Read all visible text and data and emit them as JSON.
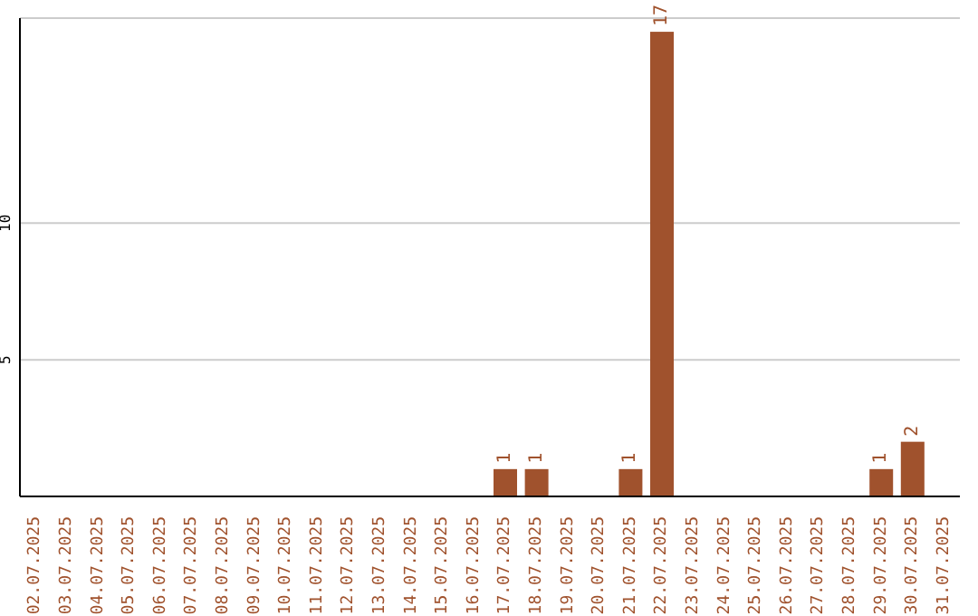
{
  "chart_data": {
    "type": "bar",
    "categories": [
      "02.07.2025",
      "03.07.2025",
      "04.07.2025",
      "05.07.2025",
      "06.07.2025",
      "07.07.2025",
      "08.07.2025",
      "09.07.2025",
      "10.07.2025",
      "11.07.2025",
      "12.07.2025",
      "13.07.2025",
      "14.07.2025",
      "15.07.2025",
      "16.07.2025",
      "17.07.2025",
      "18.07.2025",
      "19.07.2025",
      "20.07.2025",
      "21.07.2025",
      "22.07.2025",
      "23.07.2025",
      "24.07.2025",
      "25.07.2025",
      "26.07.2025",
      "27.07.2025",
      "28.07.2025",
      "29.07.2025",
      "30.07.2025",
      "31.07.2025"
    ],
    "values": [
      0,
      0,
      0,
      0,
      0,
      0,
      0,
      0,
      0,
      0,
      0,
      0,
      0,
      0,
      0,
      1,
      1,
      0,
      0,
      1,
      17,
      0,
      0,
      0,
      0,
      0,
      0,
      1,
      2,
      0
    ],
    "value_labels": [
      null,
      null,
      null,
      null,
      null,
      null,
      null,
      null,
      null,
      null,
      null,
      null,
      null,
      null,
      null,
      "1",
      "1",
      null,
      null,
      "1",
      "17",
      null,
      null,
      null,
      null,
      null,
      null,
      "1",
      "2",
      null
    ],
    "color": "#a0522d",
    "ylim": [
      0,
      17.5
    ],
    "yticks": [
      5,
      10
    ],
    "grid": "y"
  }
}
